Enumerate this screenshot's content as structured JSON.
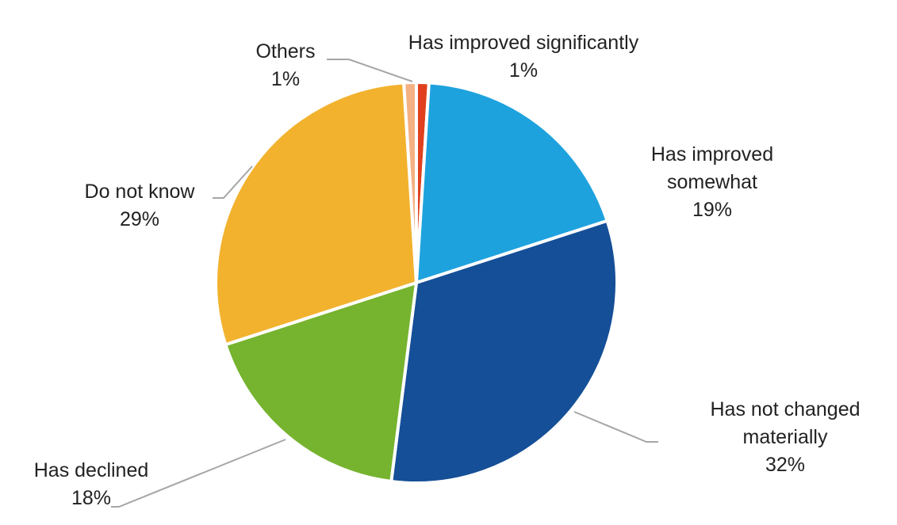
{
  "chart_data": {
    "type": "pie",
    "title": "",
    "start_angle_deg": 0,
    "direction": "clockwise",
    "slices": [
      {
        "label": "Has improved significantly",
        "value": 1,
        "display": "1%",
        "color": "#e0401e"
      },
      {
        "label": "Has improved somewhat",
        "value": 19,
        "display": "19%",
        "color": "#1ea2de"
      },
      {
        "label": "Has not changed materially",
        "value": 32,
        "display": "32%",
        "color": "#154f97"
      },
      {
        "label": "Has declined",
        "value": 18,
        "display": "18%",
        "color": "#76b32f"
      },
      {
        "label": "Do not know",
        "value": 29,
        "display": "29%",
        "color": "#f2b22e"
      },
      {
        "label": "Others",
        "value": 1,
        "display": "1%",
        "color": "#f4b183"
      }
    ],
    "label_lines": [
      [
        "Has improved significantly"
      ],
      [
        "Has improved",
        "somewhat"
      ],
      [
        "Has not changed",
        "materially"
      ],
      [
        "Has declined"
      ],
      [
        "Do not know"
      ],
      [
        "Others"
      ]
    ]
  }
}
